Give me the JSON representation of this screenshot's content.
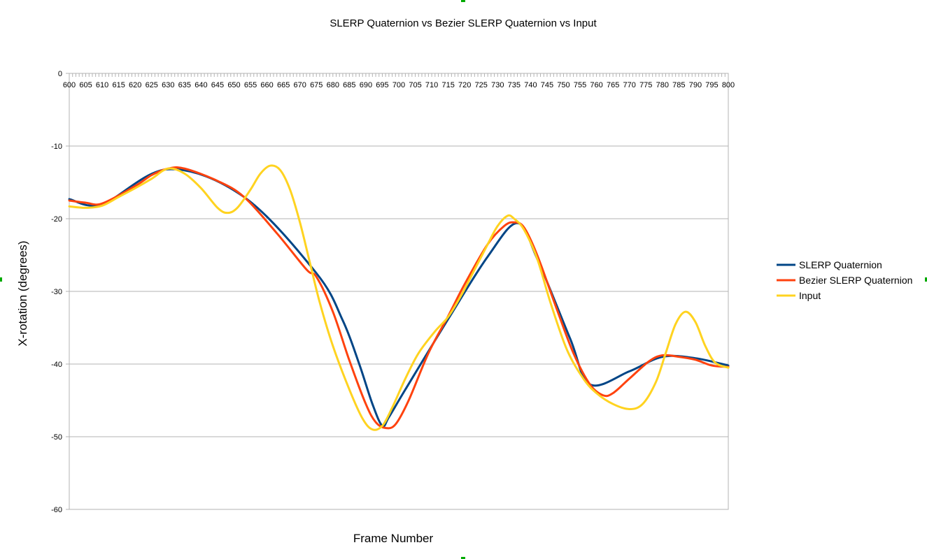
{
  "chart_data": {
    "type": "line",
    "title": "SLERP Quaternion vs Bezier SLERP Quaternion vs Input",
    "xlabel": "Frame Number",
    "ylabel": "X-rotation (degrees)",
    "xlim": [
      600,
      800
    ],
    "ylim": [
      -60,
      0
    ],
    "x_ticks": [
      "600",
      "605",
      "610",
      "615",
      "620",
      "625",
      "630",
      "635",
      "640",
      "645",
      "650",
      "655",
      "660",
      "665",
      "670",
      "675",
      "680",
      "685",
      "690",
      "695",
      "700",
      "705",
      "710",
      "715",
      "720",
      "725",
      "730",
      "735",
      "740",
      "745",
      "750",
      "755",
      "760",
      "765",
      "770",
      "775",
      "780",
      "785",
      "790",
      "795",
      "800"
    ],
    "y_ticks": [
      "0",
      "-10",
      "-20",
      "-30",
      "-40",
      "-50",
      "-60"
    ],
    "grid": true,
    "legend_position": "right",
    "series": [
      {
        "name": "SLERP Quaternion",
        "color": "#004586",
        "points": [
          [
            600,
            -17.3
          ],
          [
            610,
            -18
          ],
          [
            630,
            -13.2
          ],
          [
            653,
            -17
          ],
          [
            675,
            -27.5
          ],
          [
            683,
            -34
          ],
          [
            688,
            -40
          ],
          [
            692,
            -45.5
          ],
          [
            695,
            -48.5
          ],
          [
            697,
            -47.3
          ],
          [
            702,
            -43.5
          ],
          [
            715,
            -33.8
          ],
          [
            727,
            -25.2
          ],
          [
            736,
            -20.6
          ],
          [
            742,
            -25.5
          ],
          [
            752,
            -36.5
          ],
          [
            758,
            -42.8
          ],
          [
            770,
            -41
          ],
          [
            780,
            -39
          ],
          [
            790,
            -39.2
          ],
          [
            800,
            -40.2
          ]
        ]
      },
      {
        "name": "Bezier SLERP Quaternion",
        "color": "#ff420e",
        "points": [
          [
            600,
            -17.5
          ],
          [
            605,
            -17.8
          ],
          [
            610,
            -17.9
          ],
          [
            620,
            -15.5
          ],
          [
            625,
            -14
          ],
          [
            630,
            -13.1
          ],
          [
            635,
            -13.1
          ],
          [
            645,
            -14.8
          ],
          [
            653,
            -17
          ],
          [
            663,
            -22
          ],
          [
            672,
            -27
          ],
          [
            675,
            -28
          ],
          [
            680,
            -32.8
          ],
          [
            685,
            -39.5
          ],
          [
            690,
            -45.5
          ],
          [
            693,
            -48
          ],
          [
            696,
            -48.8
          ],
          [
            699,
            -48.3
          ],
          [
            703,
            -45
          ],
          [
            709,
            -38.5
          ],
          [
            715,
            -33.4
          ],
          [
            720,
            -29
          ],
          [
            727,
            -23.5
          ],
          [
            732,
            -21
          ],
          [
            735,
            -20.5
          ],
          [
            738,
            -21.2
          ],
          [
            742,
            -25
          ],
          [
            748,
            -32.5
          ],
          [
            753,
            -38.5
          ],
          [
            758,
            -42.8
          ],
          [
            762,
            -44.3
          ],
          [
            765,
            -44
          ],
          [
            770,
            -42
          ],
          [
            776,
            -39.6
          ],
          [
            780,
            -38.8
          ],
          [
            785,
            -39
          ],
          [
            790,
            -39.4
          ],
          [
            795,
            -40.2
          ],
          [
            800,
            -40.4
          ]
        ]
      },
      {
        "name": "Input",
        "color": "#ffd320",
        "points": [
          [
            600,
            -18.3
          ],
          [
            605,
            -18.5
          ],
          [
            610,
            -18.2
          ],
          [
            615,
            -17
          ],
          [
            620,
            -15.8
          ],
          [
            625,
            -14.5
          ],
          [
            630,
            -13.1
          ],
          [
            635,
            -13.8
          ],
          [
            640,
            -15.8
          ],
          [
            645,
            -18.5
          ],
          [
            648,
            -19.2
          ],
          [
            651,
            -18.5
          ],
          [
            655,
            -16
          ],
          [
            658,
            -13.8
          ],
          [
            661,
            -12.7
          ],
          [
            664,
            -13.3
          ],
          [
            667,
            -16
          ],
          [
            670,
            -20.5
          ],
          [
            673,
            -26
          ],
          [
            676,
            -31.5
          ],
          [
            680,
            -37.5
          ],
          [
            685,
            -43.5
          ],
          [
            689,
            -47.5
          ],
          [
            692,
            -49
          ],
          [
            695,
            -48.5
          ],
          [
            698,
            -46
          ],
          [
            702,
            -42
          ],
          [
            706,
            -38.5
          ],
          [
            711,
            -35.5
          ],
          [
            715,
            -33.5
          ],
          [
            719,
            -30.5
          ],
          [
            723,
            -27
          ],
          [
            727,
            -23.5
          ],
          [
            730,
            -21
          ],
          [
            733,
            -19.6
          ],
          [
            735,
            -20
          ],
          [
            738,
            -21.5
          ],
          [
            742,
            -25.5
          ],
          [
            746,
            -31.5
          ],
          [
            751,
            -38
          ],
          [
            756,
            -42
          ],
          [
            760,
            -44
          ],
          [
            765,
            -45.5
          ],
          [
            770,
            -46.2
          ],
          [
            774,
            -45.5
          ],
          [
            778,
            -42.5
          ],
          [
            781,
            -38.5
          ],
          [
            784,
            -34.5
          ],
          [
            787,
            -32.8
          ],
          [
            790,
            -34.2
          ],
          [
            793,
            -37.5
          ],
          [
            796,
            -39.8
          ],
          [
            800,
            -40.5
          ]
        ]
      }
    ]
  }
}
